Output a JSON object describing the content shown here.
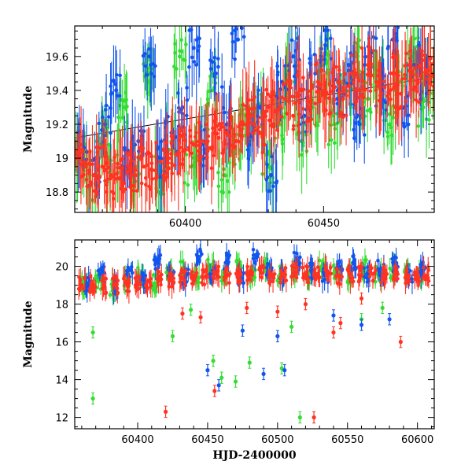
{
  "chart_data": [
    {
      "type": "scatter",
      "title": "",
      "xlabel": "",
      "ylabel": "Magnitude",
      "xlim": [
        60360,
        60490
      ],
      "ylim": [
        19.78,
        18.68
      ],
      "y_inverted": true,
      "grid": false,
      "error_bars": true,
      "xticks": [
        60400,
        60450
      ],
      "yticks": [
        18.8,
        19,
        19.2,
        19.4,
        19.6
      ],
      "ytick_labels": [
        "18.8",
        "19",
        "19.2",
        "19.4",
        "19.6"
      ],
      "series_colors": [
        "#33dd33",
        "#1155ee",
        "#ff3322"
      ],
      "trend_line": {
        "color": "#000000",
        "x": [
          60360,
          60490
        ],
        "y": [
          19.12,
          19.48
        ]
      },
      "series": [
        {
          "color": "#33dd33",
          "x": [
            60362,
            60366,
            60370,
            60374,
            60378,
            60382,
            60386,
            60390,
            60394,
            60398,
            60402,
            60406,
            60410,
            60414,
            60418,
            60422,
            60426,
            60430,
            60434,
            60438,
            60442,
            60446,
            60450,
            60454,
            60458,
            60462,
            60466,
            60470,
            60474,
            60478,
            60482,
            60486,
            60489
          ],
          "y": [
            19.0,
            18.85,
            19.15,
            18.9,
            19.3,
            18.95,
            19.5,
            18.9,
            19.05,
            19.6,
            18.95,
            19.1,
            19.4,
            18.9,
            19.05,
            19.2,
            19.3,
            18.95,
            19.2,
            19.45,
            19.1,
            19.3,
            19.55,
            19.2,
            19.4,
            19.6,
            19.35,
            19.5,
            19.2,
            19.45,
            19.6,
            19.3,
            19.5
          ]
        },
        {
          "color": "#1155ee",
          "x": [
            60363,
            60367,
            60371,
            60375,
            60379,
            60383,
            60387,
            60391,
            60395,
            60399,
            60403,
            60407,
            60411,
            60415,
            60419,
            60423,
            60427,
            60431,
            60435,
            60439,
            60443,
            60447,
            60451,
            60455,
            60459,
            60463,
            60467,
            60471,
            60475,
            60479,
            60483,
            60487
          ],
          "y": [
            19.05,
            18.9,
            19.2,
            19.4,
            18.95,
            19.1,
            19.6,
            19.0,
            19.15,
            19.3,
            19.65,
            19.05,
            19.5,
            19.2,
            19.7,
            19.1,
            19.3,
            18.9,
            19.45,
            19.6,
            19.25,
            19.5,
            19.7,
            19.35,
            19.55,
            19.2,
            19.6,
            19.4,
            19.7,
            19.3,
            19.55,
            19.45
          ]
        },
        {
          "color": "#ff3322",
          "x": [
            60361,
            60364,
            60367,
            60370,
            60373,
            60376,
            60379,
            60382,
            60385,
            60388,
            60391,
            60394,
            60397,
            60400,
            60403,
            60406,
            60409,
            60412,
            60415,
            60418,
            60421,
            60424,
            60427,
            60430,
            60433,
            60436,
            60439,
            60442,
            60445,
            60448,
            60451,
            60454,
            60457,
            60460,
            60463,
            60466,
            60469,
            60472,
            60475,
            60478,
            60481,
            60484,
            60487,
            60490
          ],
          "y": [
            19.0,
            18.95,
            18.9,
            18.95,
            18.9,
            18.88,
            18.92,
            18.9,
            18.95,
            18.93,
            18.98,
            19.0,
            19.02,
            19.05,
            19.08,
            19.1,
            19.06,
            19.12,
            19.15,
            19.1,
            19.2,
            19.25,
            19.15,
            19.3,
            19.28,
            19.35,
            19.25,
            19.4,
            19.3,
            19.45,
            19.38,
            19.42,
            19.35,
            19.5,
            19.4,
            19.55,
            19.45,
            19.42,
            19.5,
            19.38,
            19.55,
            19.45,
            19.52,
            19.48
          ]
        }
      ]
    },
    {
      "type": "scatter",
      "title": "",
      "xlabel": "HJD-2400000",
      "ylabel": "Magnitude",
      "xlim": [
        60355,
        60612
      ],
      "ylim": [
        21.4,
        11.4
      ],
      "y_inverted": true,
      "grid": false,
      "error_bars": true,
      "xticks": [
        60400,
        60450,
        60500,
        60550,
        60600
      ],
      "yticks": [
        12,
        14,
        16,
        18,
        20
      ],
      "series_colors": [
        "#33dd33",
        "#1155ee",
        "#ff3322"
      ],
      "outliers": [
        {
          "color": "#33dd33",
          "x": [
            60368,
            60368,
            60425,
            60438,
            60454,
            60460,
            60470,
            60480,
            60503,
            60510,
            60516,
            60560,
            60575
          ],
          "y": [
            13.0,
            16.5,
            16.3,
            17.7,
            15.0,
            14.1,
            13.9,
            14.9,
            14.6,
            16.8,
            12.0,
            17.2,
            17.8
          ]
        },
        {
          "color": "#1155ee",
          "x": [
            60450,
            60458,
            60475,
            60490,
            60500,
            60505,
            60540,
            60560,
            60580
          ],
          "y": [
            14.5,
            13.7,
            16.6,
            14.3,
            16.3,
            14.5,
            17.4,
            16.9,
            17.2
          ]
        },
        {
          "color": "#ff3322",
          "x": [
            60420,
            60432,
            60445,
            60455,
            60478,
            60500,
            60520,
            60526,
            60540,
            60545,
            60560,
            60588
          ],
          "y": [
            12.3,
            17.5,
            17.3,
            13.4,
            17.8,
            17.6,
            18.0,
            12.0,
            16.5,
            17.0,
            18.3,
            16.0
          ]
        }
      ],
      "series": [
        {
          "color": "#33dd33",
          "x": [
            60362,
            60372,
            60382,
            60392,
            60402,
            60412,
            60422,
            60432,
            60442,
            60452,
            60462,
            60472,
            60482,
            60492,
            60502,
            60512,
            60522,
            60532,
            60542,
            60552,
            60562,
            60572,
            60582,
            60592,
            60602
          ],
          "y": [
            19.0,
            19.2,
            18.9,
            19.3,
            19.5,
            19.1,
            19.6,
            19.8,
            19.3,
            20.0,
            19.4,
            19.9,
            19.5,
            20.1,
            19.6,
            19.8,
            19.4,
            20.0,
            19.7,
            19.5,
            19.9,
            19.6,
            19.8,
            19.7,
            19.6
          ]
        },
        {
          "color": "#1155ee",
          "x": [
            60364,
            60374,
            60384,
            60394,
            60404,
            60414,
            60424,
            60434,
            60444,
            60454,
            60464,
            60474,
            60484,
            60494,
            60504,
            60514,
            60524,
            60534,
            60544,
            60554,
            60564,
            60574,
            60584,
            60594,
            60604
          ],
          "y": [
            19.1,
            19.6,
            19.0,
            19.8,
            19.3,
            20.2,
            19.5,
            19.4,
            20.5,
            19.6,
            20.3,
            19.4,
            20.6,
            19.7,
            19.5,
            20.4,
            19.8,
            19.6,
            19.9,
            20.2,
            19.6,
            19.9,
            20.1,
            19.5,
            19.8
          ]
        },
        {
          "color": "#ff3322",
          "x": [
            60360,
            60368,
            60376,
            60384,
            60392,
            60400,
            60408,
            60416,
            60424,
            60432,
            60440,
            60448,
            60456,
            60464,
            60472,
            60480,
            60488,
            60496,
            60504,
            60512,
            60520,
            60528,
            60536,
            60544,
            60552,
            60560,
            60568,
            60576,
            60584,
            60592,
            60600,
            60606
          ],
          "y": [
            19.0,
            19.05,
            18.95,
            19.0,
            19.1,
            19.15,
            19.2,
            19.3,
            19.35,
            19.4,
            19.5,
            19.45,
            19.6,
            19.55,
            19.5,
            19.6,
            19.65,
            19.5,
            19.6,
            19.7,
            19.55,
            19.6,
            19.65,
            19.5,
            19.6,
            19.55,
            19.6,
            19.5,
            19.6,
            19.55,
            19.6,
            19.5
          ]
        }
      ]
    }
  ]
}
